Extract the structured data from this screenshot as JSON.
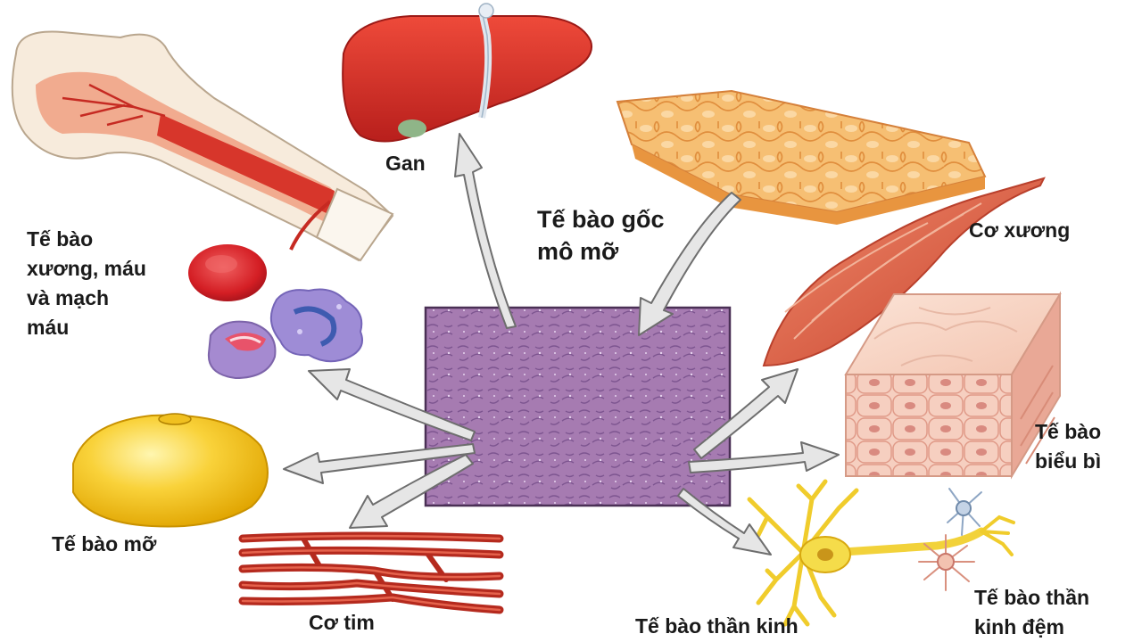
{
  "diagram": {
    "center": {
      "line1": "Tế bào gốc",
      "line2": "mô mỡ"
    },
    "labels": {
      "liver": "Gan",
      "blood": {
        "line1": "Tế bào",
        "line2": "xương, máu",
        "line3": "và mạch",
        "line4": "máu"
      },
      "skeletal_muscle": "Cơ xương",
      "epidermis": {
        "line1": "Tế bào",
        "line2": "biểu bì"
      },
      "fat_cell": "Tế bào mỡ",
      "cardiac_muscle": "Cơ tim",
      "neuron": "Tế bào thần kinh",
      "glial": {
        "line1": "Tế bào thần",
        "line2": "kinh đệm"
      }
    },
    "colors": {
      "text": "#1a1a1a",
      "arrow_fill": "#e6e6e6",
      "arrow_stroke": "#6e6e6e",
      "center_tissue": "#a77bb0",
      "liver": "#d9342b",
      "fat_tissue": "#f4b766",
      "muscle": "#d9563f",
      "fat_cell": "#f7c928",
      "neuron": "#f2d23a"
    }
  }
}
